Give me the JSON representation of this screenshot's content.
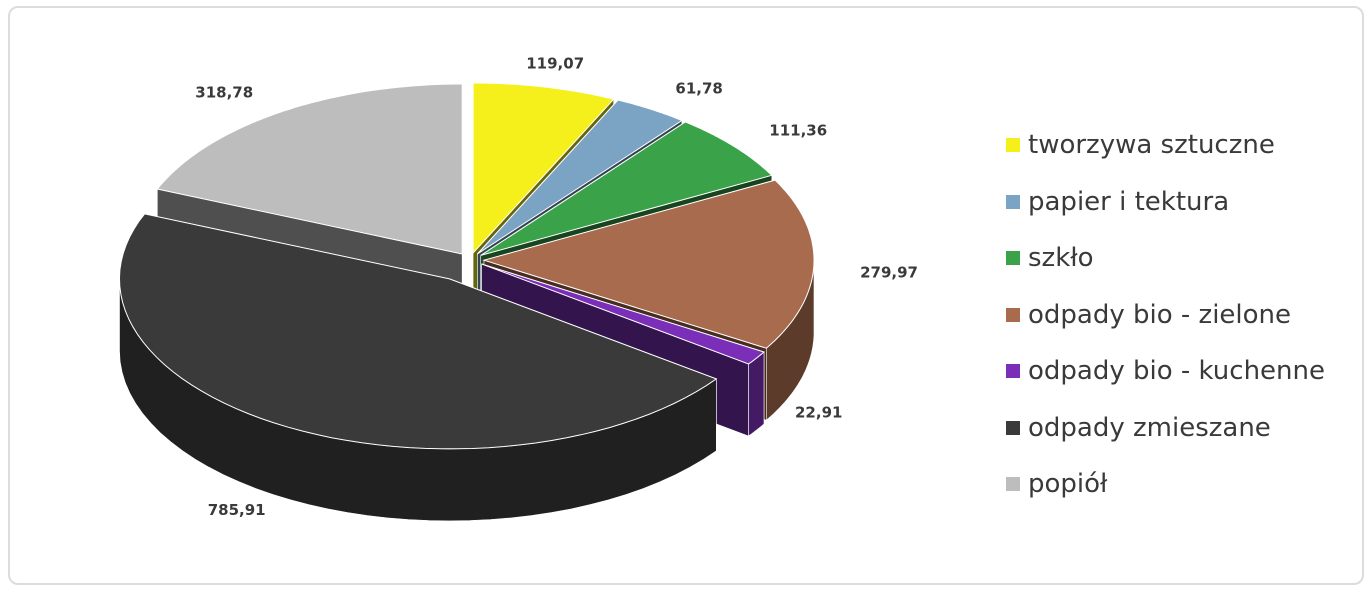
{
  "chart_data": {
    "type": "pie",
    "title": "",
    "legend_position": "right",
    "style": "3d-exploded",
    "series": [
      {
        "name": "tworzywa sztuczne",
        "value": 119.07,
        "label": "119,07",
        "color": "#f5f01c"
      },
      {
        "name": "papier i tektura",
        "value": 61.78,
        "label": "61,78",
        "color": "#7aa3c4"
      },
      {
        "name": "szkło",
        "value": 111.36,
        "label": "111,36",
        "color": "#3aa34a"
      },
      {
        "name": "odpady bio - zielone",
        "value": 279.97,
        "label": "279,97",
        "color": "#a86b4e"
      },
      {
        "name": "odpady bio - kuchenne",
        "value": 22.91,
        "label": "22,91",
        "color": "#7b2fb8"
      },
      {
        "name": "odpady zmieszane",
        "value": 785.91,
        "label": "785,91",
        "color": "#3a3a3a"
      },
      {
        "name": "popiół",
        "value": 318.78,
        "label": "318,78",
        "color": "#bdbdbd"
      }
    ]
  }
}
